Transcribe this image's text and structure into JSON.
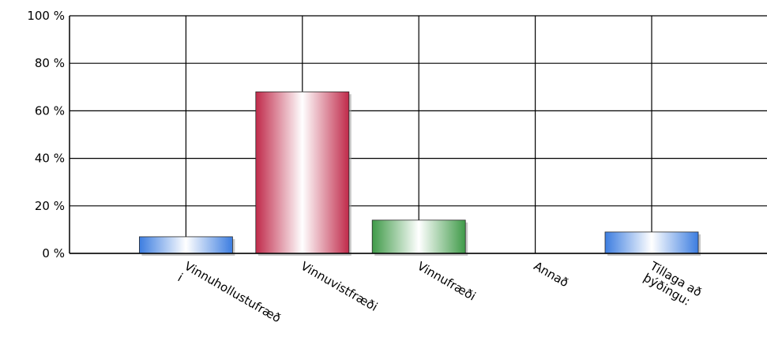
{
  "chart_data": {
    "type": "bar",
    "categories": [
      [
        "Vinnuhollustufræð",
        "i"
      ],
      [
        "Vinnuvistfræði"
      ],
      [
        "Vinnufræði"
      ],
      [
        "Annað"
      ],
      [
        "Tillaga að",
        "þýðingu:"
      ]
    ],
    "values": [
      7,
      68,
      14,
      0,
      9
    ],
    "bar_colors": [
      "#3c7de0",
      "#c02a4a",
      "#3f9a48",
      "#3c7de0",
      "#3c7de0"
    ],
    "ylim": [
      0,
      100
    ],
    "yticks": [
      0,
      20,
      40,
      60,
      80,
      100
    ],
    "ytick_suffix": " %",
    "grid": true
  }
}
